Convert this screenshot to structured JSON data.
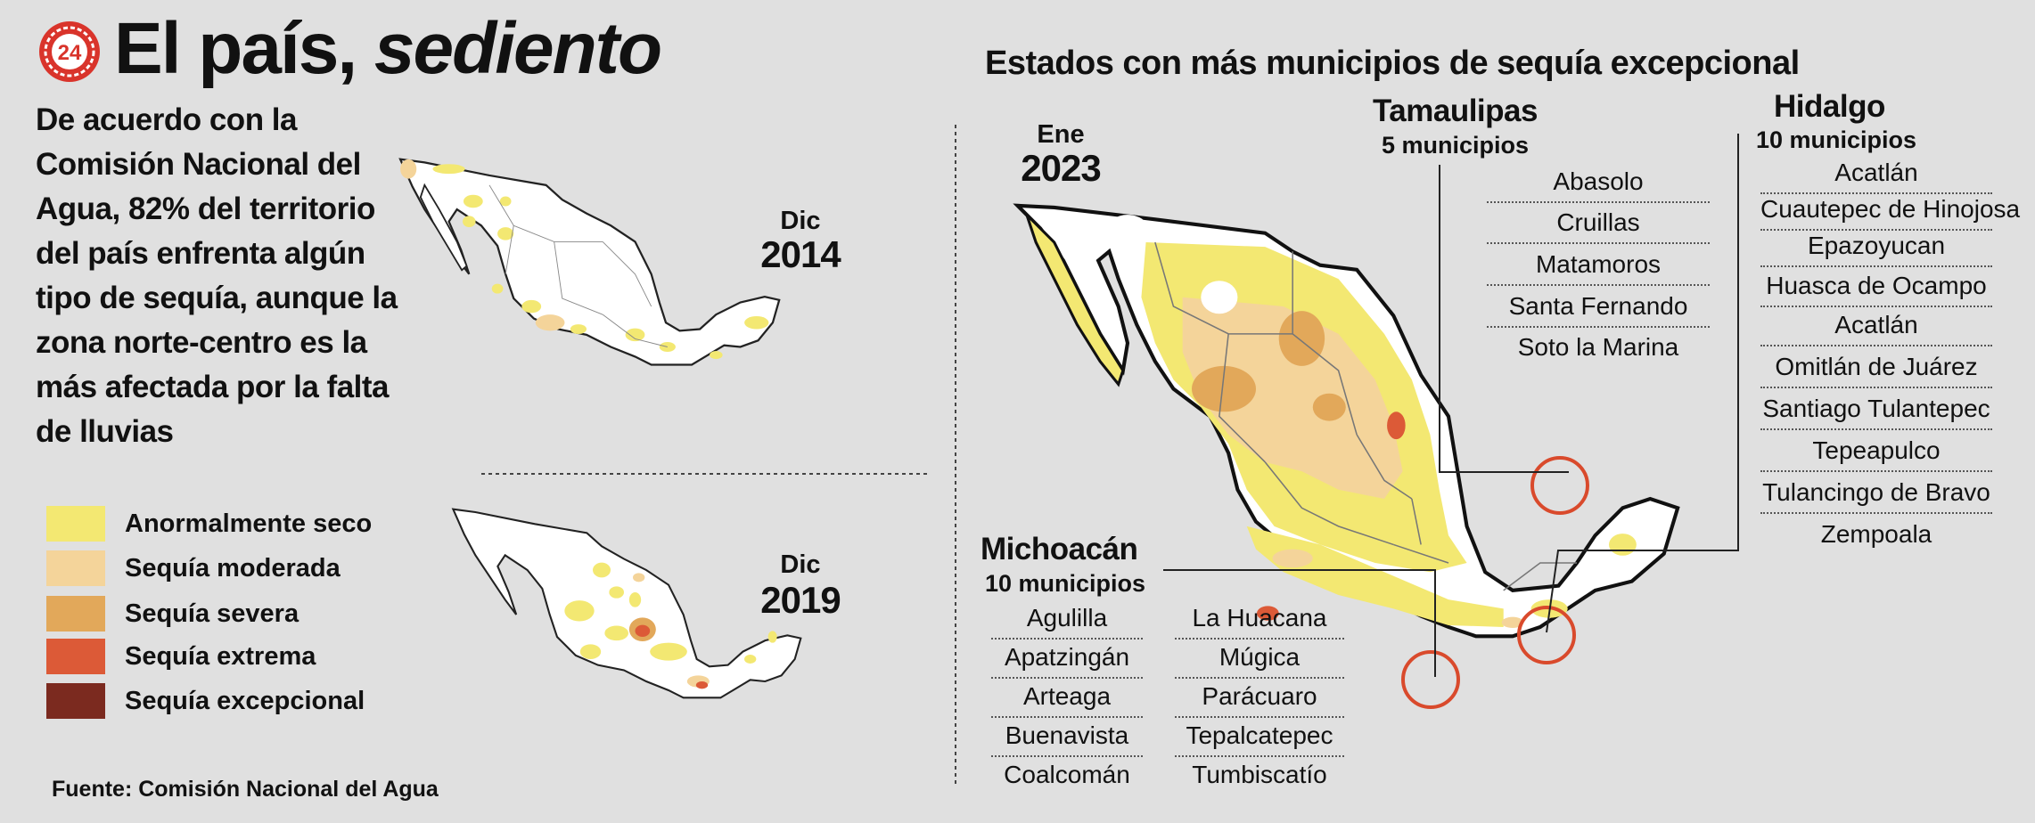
{
  "header": {
    "title_main": "El país, ",
    "title_italic": "sediento",
    "logo_icon": "brand-24-logo-icon",
    "logo_text": "24"
  },
  "intro_text": "De acuerdo con la Comisión Nacional del Agua, 82% del territorio del país enfrenta algún tipo de sequía, aunque la zona norte-centro es la más afectada por la falta de lluvias",
  "legend": [
    {
      "label": "Anormalmente seco",
      "color": "#f3e872"
    },
    {
      "label": "Sequía moderada",
      "color": "#f4d49a"
    },
    {
      "label": "Sequía severa",
      "color": "#e2a85a"
    },
    {
      "label": "Sequía extrema",
      "color": "#dc5a37"
    },
    {
      "label": "Sequía excepcional",
      "color": "#7b2a1f"
    }
  ],
  "source": "Fuente: Comisión Nacional del Agua",
  "maps": {
    "m2014": {
      "month": "Dic",
      "year": "2014"
    },
    "m2019": {
      "month": "Dic",
      "year": "2019"
    },
    "m2023": {
      "month": "Ene",
      "year": "2023"
    }
  },
  "right_title": "Estados con más municipios de sequía excepcional",
  "states": {
    "tamaulipas": {
      "name": "Tamaulipas",
      "count": "5 municipios",
      "municipios": [
        "Abasolo",
        "Cruillas",
        "Matamoros",
        "Santa Fernando",
        "Soto la Marina"
      ]
    },
    "hidalgo": {
      "name": "Hidalgo",
      "count": "10 municipios",
      "municipios": [
        "Acatlán",
        "Cuautepec de Hinojosa",
        "Epazoyucan",
        "Huasca de Ocampo",
        "Acatlán",
        "Omitlán de Juárez",
        "Santiago Tulantepec",
        "Tepeapulco",
        "Tulancingo de Bravo",
        "Zempoala"
      ]
    },
    "michoacan": {
      "name": "Michoacán",
      "count": "10 municipios",
      "municipios_col1": [
        "Agulilla",
        "Apatzingán",
        "Arteaga",
        "Buenavista",
        "Coalcomán"
      ],
      "municipios_col2": [
        "La Huacana",
        "Múgica",
        "Parácuaro",
        "Tepalcatepec",
        "Tumbiscatío"
      ]
    }
  },
  "colors": {
    "background": "#e0e0e0",
    "land": "#ffffff",
    "highlight_circle": "#d94a2c"
  }
}
